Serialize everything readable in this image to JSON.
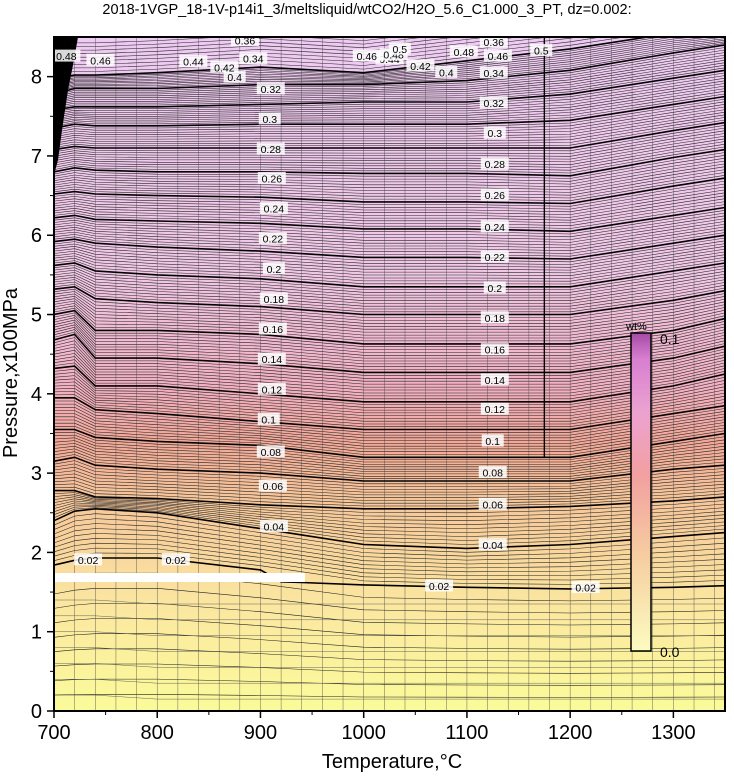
{
  "chart_data": {
    "type": "heatmap",
    "title": "2018-1VGP_18-1V-p14i1_3/meltsliquid/wtCO2/H2O_5.6_C1.000_3_PT, dz=0.002:",
    "xlabel": "Temperature,°C",
    "ylabel": "Pressure,x100MPa",
    "xlim": [
      700,
      1350
    ],
    "ylim": [
      0,
      8.5
    ],
    "x_ticks": [
      "700",
      "800",
      "900",
      "1000",
      "1100",
      "1200",
      "1300"
    ],
    "y_ticks": [
      "0",
      "1",
      "2",
      "3",
      "4",
      "5",
      "6",
      "7",
      "8"
    ],
    "x_tick_values": [
      700,
      800,
      900,
      1000,
      1100,
      1200,
      1300
    ],
    "y_tick_values": [
      0,
      1,
      2,
      3,
      4,
      5,
      6,
      7,
      8
    ],
    "grid": true,
    "contour_interval": 0.002,
    "major_contour_interval": 0.02,
    "colorbar": {
      "unit": "wt%",
      "max_label": "0.1",
      "min_label": "0.0",
      "colors": [
        "#fbfb9a",
        "#f6c89b",
        "#f09a8f",
        "#f2acc9",
        "#e38fd8",
        "#b04fae"
      ]
    },
    "major_contours": [
      {
        "level": 0.02,
        "T": [
          700,
          720,
          740,
          800,
          900,
          920,
          940,
          1000,
          1100,
          1200,
          1300,
          1350
        ],
        "P": [
          1.84,
          1.9,
          1.93,
          1.93,
          1.78,
          1.63,
          1.62,
          1.59,
          1.56,
          1.54,
          1.56,
          1.58
        ]
      },
      {
        "level": 0.04,
        "T": [
          700,
          720,
          740,
          800,
          900,
          950,
          1000,
          1100,
          1200,
          1300,
          1350
        ],
        "P": [
          2.4,
          2.52,
          2.55,
          2.5,
          2.3,
          2.2,
          2.1,
          2.05,
          2.1,
          2.2,
          2.25
        ]
      },
      {
        "level": 0.06,
        "T": [
          700,
          720,
          740,
          800,
          900,
          1000,
          1100,
          1200,
          1300,
          1350
        ],
        "P": [
          2.78,
          2.78,
          2.7,
          2.68,
          2.6,
          2.55,
          2.55,
          2.58,
          2.65,
          2.7
        ]
      },
      {
        "level": 0.08,
        "T": [
          700,
          720,
          740,
          800,
          900,
          1000,
          1100,
          1200,
          1300,
          1350
        ],
        "P": [
          3.15,
          3.2,
          3.1,
          3.05,
          3.0,
          2.9,
          2.9,
          2.9,
          3.05,
          3.1
        ]
      },
      {
        "level": 0.1,
        "T": [
          700,
          720,
          740,
          800,
          900,
          1000,
          1100,
          1200,
          1300,
          1350
        ],
        "P": [
          3.55,
          3.55,
          3.45,
          3.4,
          3.35,
          3.2,
          3.2,
          3.2,
          3.4,
          3.5
        ]
      },
      {
        "level": 0.12,
        "T": [
          700,
          720,
          740,
          800,
          900,
          1000,
          1100,
          1200,
          1300,
          1350
        ],
        "P": [
          3.95,
          3.95,
          3.8,
          3.75,
          3.65,
          3.55,
          3.55,
          3.55,
          3.75,
          3.85
        ]
      },
      {
        "level": 0.14,
        "T": [
          700,
          720,
          740,
          800,
          900,
          1000,
          1100,
          1200,
          1300,
          1350
        ],
        "P": [
          4.32,
          4.35,
          4.1,
          4.1,
          4.0,
          3.9,
          3.9,
          3.9,
          4.1,
          4.25
        ]
      },
      {
        "level": 0.16,
        "T": [
          700,
          720,
          740,
          800,
          900,
          1000,
          1100,
          1200,
          1300,
          1350
        ],
        "P": [
          4.68,
          4.75,
          4.45,
          4.45,
          4.38,
          4.27,
          4.27,
          4.27,
          4.45,
          4.6
        ]
      },
      {
        "level": 0.18,
        "T": [
          700,
          720,
          740,
          800,
          900,
          1000,
          1100,
          1200,
          1300,
          1350
        ],
        "P": [
          5.0,
          5.05,
          4.8,
          4.8,
          4.75,
          4.63,
          4.63,
          4.63,
          4.8,
          4.95
        ]
      },
      {
        "level": 0.2,
        "T": [
          700,
          720,
          740,
          800,
          900,
          1000,
          1100,
          1200,
          1300,
          1350
        ],
        "P": [
          5.32,
          5.35,
          5.2,
          5.15,
          5.1,
          5.0,
          5.0,
          5.0,
          5.18,
          5.3
        ]
      },
      {
        "level": 0.22,
        "T": [
          700,
          720,
          740,
          800,
          900,
          1000,
          1100,
          1200,
          1300,
          1350
        ],
        "P": [
          5.62,
          5.65,
          5.55,
          5.5,
          5.45,
          5.35,
          5.35,
          5.35,
          5.55,
          5.65
        ]
      },
      {
        "level": 0.24,
        "T": [
          700,
          720,
          740,
          800,
          900,
          1000,
          1100,
          1200,
          1300,
          1350
        ],
        "P": [
          5.92,
          5.95,
          5.9,
          5.85,
          5.8,
          5.72,
          5.72,
          5.7,
          5.9,
          6.0
        ]
      },
      {
        "level": 0.26,
        "T": [
          700,
          720,
          740,
          800,
          900,
          1000,
          1100,
          1200,
          1300,
          1350
        ],
        "P": [
          6.22,
          6.25,
          6.2,
          6.18,
          6.15,
          6.08,
          6.08,
          6.05,
          6.25,
          6.35
        ]
      },
      {
        "level": 0.28,
        "T": [
          700,
          720,
          740,
          800,
          900,
          1000,
          1100,
          1200,
          1300,
          1350
        ],
        "P": [
          6.52,
          6.55,
          6.52,
          6.5,
          6.48,
          6.42,
          6.42,
          6.4,
          6.62,
          6.72
        ]
      },
      {
        "level": 0.3,
        "T": [
          700,
          720,
          740,
          800,
          900,
          1000,
          1100,
          1200,
          1300,
          1350
        ],
        "P": [
          6.8,
          6.85,
          6.82,
          6.8,
          6.8,
          6.78,
          6.78,
          6.75,
          6.98,
          7.08
        ]
      },
      {
        "level": 0.32,
        "T": [
          700,
          720,
          740,
          800,
          900,
          1000,
          1100,
          1200,
          1300,
          1350
        ],
        "P": [
          7.08,
          7.12,
          7.1,
          7.1,
          7.1,
          7.1,
          7.1,
          7.1,
          7.32,
          7.42
        ]
      },
      {
        "level": 0.34,
        "T": [
          700,
          720,
          740,
          800,
          900,
          1000,
          1100,
          1200,
          1300,
          1350
        ],
        "P": [
          7.35,
          7.4,
          7.38,
          7.38,
          7.4,
          7.4,
          7.4,
          7.45,
          7.65,
          7.75
        ]
      },
      {
        "level": 0.36,
        "T": [
          700,
          720,
          740,
          800,
          900,
          1000,
          1100,
          1200,
          1300,
          1350
        ],
        "P": [
          7.58,
          7.62,
          7.62,
          7.62,
          7.65,
          7.68,
          7.68,
          7.78,
          7.98,
          8.08
        ]
      },
      {
        "level": 0.38,
        "T": [
          700,
          720,
          740,
          800,
          900,
          1000,
          1100,
          1200,
          1300,
          1350
        ],
        "P": [
          7.78,
          7.85,
          7.85,
          7.85,
          7.9,
          7.9,
          7.95,
          8.08,
          8.3,
          8.4
        ]
      },
      {
        "level": 0.4,
        "T": [
          700,
          720,
          740,
          800,
          900,
          1000,
          1100,
          1200,
          1300,
          1350
        ],
        "P": [
          7.98,
          8.02,
          8.02,
          8.05,
          8.12,
          8.05,
          8.2,
          8.35,
          8.55,
          8.6
        ]
      }
    ],
    "contour_labels": [
      {
        "text": "0.02",
        "T": 733,
        "P": 1.9
      },
      {
        "text": "0.02",
        "T": 818,
        "P": 1.9
      },
      {
        "text": "0.02",
        "T": 1073,
        "P": 1.57
      },
      {
        "text": "0.02",
        "T": 1215,
        "P": 1.55
      },
      {
        "text": "0.04",
        "T": 913,
        "P": 2.32
      },
      {
        "text": "0.04",
        "T": 1125,
        "P": 2.09
      },
      {
        "text": "0.06",
        "T": 912,
        "P": 2.83
      },
      {
        "text": "0.06",
        "T": 1125,
        "P": 2.6
      },
      {
        "text": "0.08",
        "T": 910,
        "P": 3.26
      },
      {
        "text": "0.08",
        "T": 1125,
        "P": 3.0
      },
      {
        "text": "0.1",
        "T": 908,
        "P": 3.67
      },
      {
        "text": "0.1",
        "T": 1125,
        "P": 3.4
      },
      {
        "text": "0.12",
        "T": 911,
        "P": 4.05
      },
      {
        "text": "0.12",
        "T": 1127,
        "P": 3.8
      },
      {
        "text": "0.14",
        "T": 911,
        "P": 4.43
      },
      {
        "text": "0.14",
        "T": 1127,
        "P": 4.17
      },
      {
        "text": "0.16",
        "T": 912,
        "P": 4.81
      },
      {
        "text": "0.16",
        "T": 1127,
        "P": 4.55
      },
      {
        "text": "0.18",
        "T": 913,
        "P": 5.19
      },
      {
        "text": "0.18",
        "T": 1127,
        "P": 4.95
      },
      {
        "text": "0.2",
        "T": 913,
        "P": 5.57
      },
      {
        "text": "0.2",
        "T": 1127,
        "P": 5.33
      },
      {
        "text": "0.22",
        "T": 912,
        "P": 5.95
      },
      {
        "text": "0.22",
        "T": 1127,
        "P": 5.72
      },
      {
        "text": "0.24",
        "T": 913,
        "P": 6.33
      },
      {
        "text": "0.24",
        "T": 1127,
        "P": 6.1
      },
      {
        "text": "0.26",
        "T": 911,
        "P": 6.71
      },
      {
        "text": "0.26",
        "T": 1127,
        "P": 6.5
      },
      {
        "text": "0.28",
        "T": 910,
        "P": 7.08
      },
      {
        "text": "0.28",
        "T": 1127,
        "P": 6.89
      },
      {
        "text": "0.3",
        "T": 909,
        "P": 7.46
      },
      {
        "text": "0.3",
        "T": 1127,
        "P": 7.28
      },
      {
        "text": "0.32",
        "T": 910,
        "P": 7.84
      },
      {
        "text": "0.32",
        "T": 1126,
        "P": 7.66
      },
      {
        "text": "0.34",
        "T": 893,
        "P": 8.22
      },
      {
        "text": "0.34",
        "T": 1126,
        "P": 8.04
      },
      {
        "text": "0.36",
        "T": 885,
        "P": 8.45
      },
      {
        "text": "0.36",
        "T": 1126,
        "P": 8.43
      },
      {
        "text": "0.38",
        "T": 880,
        "P": 8.7
      },
      {
        "text": "0.38",
        "T": 1097,
        "P": 8.82
      },
      {
        "text": "0.4",
        "T": 875,
        "P": 8.95
      },
      {
        "text": "0.4",
        "T": 1080,
        "P": 9.12
      },
      {
        "text": "0.42",
        "T": 865,
        "P": 9.3
      },
      {
        "text": "0.42",
        "T": 1055,
        "P": 9.35
      },
      {
        "text": "0.44",
        "T": 835,
        "P": 9.5
      },
      {
        "text": "0.44",
        "T": 1025,
        "P": 9.6
      },
      {
        "text": "0.46",
        "T": 745,
        "P": 9.55
      },
      {
        "text": "0.46",
        "T": 1003,
        "P": 9.7
      },
      {
        "text": "0.46",
        "T": 1130,
        "P": 9.7
      },
      {
        "text": "0.48",
        "T": 1029,
        "P": 9.75
      },
      {
        "text": "0.48",
        "T": 1097,
        "P": 9.85
      },
      {
        "text": "0.48",
        "T": 712,
        "P": 9.7
      },
      {
        "text": "0.5",
        "T": 1172,
        "P": 9.9
      },
      {
        "text": "0.5",
        "T": 1035,
        "P": 9.95
      }
    ]
  }
}
